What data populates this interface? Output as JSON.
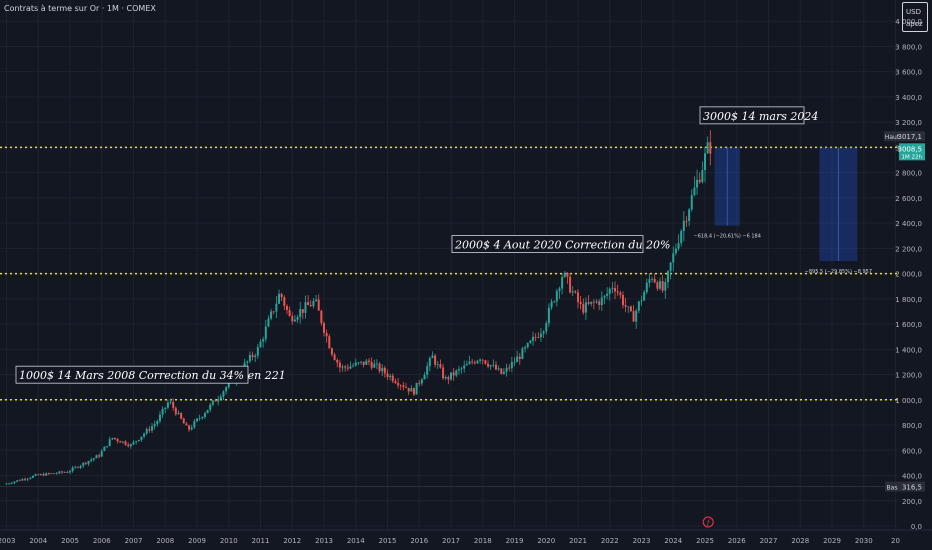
{
  "header": {
    "title": "Contrats à terme sur Or · 1M · COMEX",
    "currency": "USD",
    "unit": "apoz"
  },
  "chart_data": {
    "type": "candlestick",
    "title": "Contrats à terme sur Or · 1M · COMEX",
    "ylim": [
      0,
      4100
    ],
    "y_ticks": [
      "0,0",
      "200,0",
      "400,0",
      "600,0",
      "800,0",
      "1 000,0",
      "1 200,0",
      "1 400,0",
      "1 600,0",
      "1 800,0",
      "2 000,0",
      "2 200,0",
      "2 400,0",
      "2 600,0",
      "2 800,0",
      "3 000,0",
      "3 200,0",
      "3 400,0",
      "3 600,0",
      "3 800,0",
      "4 000,0"
    ],
    "x_ticks": [
      "2003",
      "2004",
      "2005",
      "2006",
      "2007",
      "2008",
      "2009",
      "2010",
      "2011",
      "2012",
      "2013",
      "2014",
      "2015",
      "2016",
      "2017",
      "2018",
      "2019",
      "2020",
      "2021",
      "2022",
      "2023",
      "2024",
      "2025",
      "2026",
      "2027",
      "2028",
      "2029",
      "2030",
      "20"
    ],
    "price_keypoints": [
      [
        2003.0,
        330
      ],
      [
        2004.0,
        400
      ],
      [
        2005.0,
        430
      ],
      [
        2006.0,
        560
      ],
      [
        2006.4,
        700
      ],
      [
        2007.0,
        640
      ],
      [
        2007.8,
        820
      ],
      [
        2008.2,
        990
      ],
      [
        2008.8,
        760
      ],
      [
        2009.5,
        950
      ],
      [
        2010.5,
        1250
      ],
      [
        2011.0,
        1400
      ],
      [
        2011.7,
        1850
      ],
      [
        2012.0,
        1650
      ],
      [
        2012.8,
        1780
      ],
      [
        2013.3,
        1400
      ],
      [
        2013.6,
        1250
      ],
      [
        2014.5,
        1300
      ],
      [
        2015.9,
        1060
      ],
      [
        2016.5,
        1340
      ],
      [
        2016.9,
        1160
      ],
      [
        2018.0,
        1340
      ],
      [
        2018.7,
        1200
      ],
      [
        2019.5,
        1420
      ],
      [
        2020.0,
        1580
      ],
      [
        2020.6,
        2000
      ],
      [
        2021.2,
        1720
      ],
      [
        2021.9,
        1800
      ],
      [
        2022.2,
        1920
      ],
      [
        2022.8,
        1640
      ],
      [
        2023.4,
        1990
      ],
      [
        2023.8,
        1850
      ],
      [
        2024.0,
        2070
      ],
      [
        2024.3,
        2330
      ],
      [
        2024.8,
        2700
      ],
      [
        2025.2,
        3010
      ]
    ],
    "horizontal_levels": [
      {
        "price": 3000,
        "label": "3 000,0"
      },
      {
        "price": 2000,
        "label": "2 000,0"
      },
      {
        "price": 1000,
        "label": "1 000,0"
      }
    ],
    "high": {
      "tag": "Haut",
      "value": "3017,1"
    },
    "low": {
      "tag": "Bas",
      "value": "316,5"
    },
    "current": {
      "value": "3008,5",
      "sub": "1M 22h",
      "level": "3 000,0"
    },
    "annotations": [
      {
        "text": "3000$ 14 mars 2024",
        "price": 3250
      },
      {
        "text": "2000$ 4 Aout 2020 Correction du 20%",
        "price": 2230
      },
      {
        "text": "1000$ 14 Mars 2008 Correction du 34% en 221",
        "price": 1195
      }
    ],
    "measure_boxes": [
      {
        "x_start": 2025.3,
        "x_end": 2026.1,
        "top": 3000,
        "bottom": 2380,
        "label": "−618,4 (−20,61%) −6 184"
      },
      {
        "x_start": 2028.6,
        "x_end": 2029.8,
        "top": 3000,
        "bottom": 2100,
        "label": "−895,5 (−29,85%) −8 957"
      }
    ],
    "flag_icon_year": 2025.1
  }
}
